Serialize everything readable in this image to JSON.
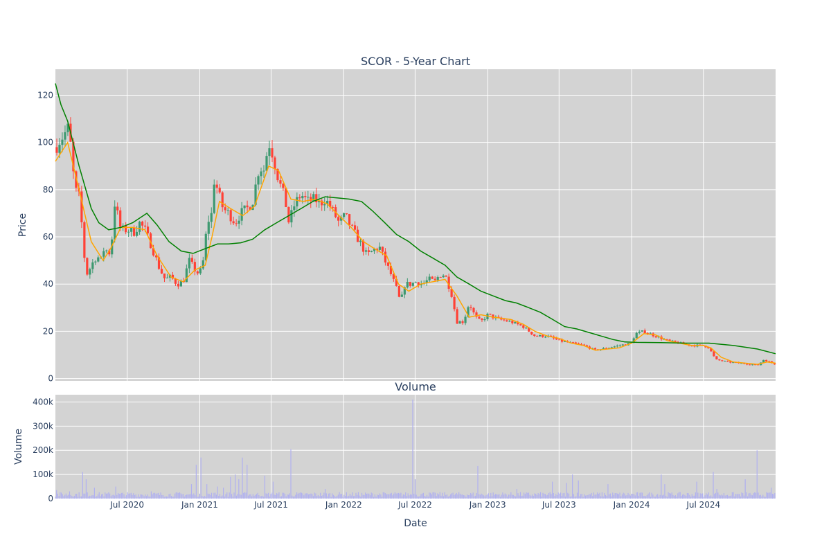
{
  "chart_data": [
    {
      "type": "candlestick",
      "title": "SCOR - 5-Year Chart",
      "xlabel": "",
      "ylabel": "Price",
      "ylim": [
        -1,
        131
      ],
      "yticks": [
        0,
        20,
        40,
        60,
        80,
        100,
        120
      ],
      "x_range": [
        "2020-01-01",
        "2024-12-31"
      ],
      "grid": true,
      "colors": {
        "increasing": "#3d9970",
        "decreasing": "#ff4136",
        "short_ma": "#ffa500",
        "long_ma": "#008000",
        "plot_bg": "#d3d3d3",
        "grid": "#ffffff"
      },
      "anchors": [
        [
          "2020-01-02",
          98
        ],
        [
          "2020-01-12",
          101
        ],
        [
          "2020-01-22",
          103
        ],
        [
          "2020-02-01",
          106
        ],
        [
          "2020-02-06",
          104
        ],
        [
          "2020-02-12",
          92
        ],
        [
          "2020-02-20",
          80
        ],
        [
          "2020-03-01",
          77
        ],
        [
          "2020-03-08",
          65
        ],
        [
          "2020-03-14",
          52
        ],
        [
          "2020-03-22",
          44
        ],
        [
          "2020-04-01",
          48
        ],
        [
          "2020-04-15",
          52
        ],
        [
          "2020-04-25",
          50
        ],
        [
          "2020-05-05",
          56
        ],
        [
          "2020-05-15",
          52
        ],
        [
          "2020-05-24",
          60
        ],
        [
          "2020-05-29",
          75
        ],
        [
          "2020-06-06",
          70
        ],
        [
          "2020-06-15",
          63
        ],
        [
          "2020-07-01",
          63
        ],
        [
          "2020-07-20",
          62
        ],
        [
          "2020-08-01",
          66
        ],
        [
          "2020-08-15",
          63
        ],
        [
          "2020-09-01",
          56
        ],
        [
          "2020-09-20",
          47
        ],
        [
          "2020-10-05",
          42
        ],
        [
          "2020-10-20",
          43
        ],
        [
          "2020-11-05",
          40
        ],
        [
          "2020-11-20",
          41
        ],
        [
          "2020-12-05",
          50
        ],
        [
          "2020-12-20",
          46
        ],
        [
          "2020-12-31",
          44
        ],
        [
          "2021-01-10",
          50
        ],
        [
          "2021-01-20",
          66
        ],
        [
          "2021-02-01",
          70
        ],
        [
          "2021-02-07",
          85
        ],
        [
          "2021-02-18",
          78
        ],
        [
          "2021-03-01",
          72
        ],
        [
          "2021-03-15",
          70
        ],
        [
          "2021-04-01",
          66
        ],
        [
          "2021-04-15",
          70
        ],
        [
          "2021-05-01",
          72
        ],
        [
          "2021-05-15",
          75
        ],
        [
          "2021-06-01",
          90
        ],
        [
          "2021-06-12",
          88
        ],
        [
          "2021-06-25",
          100
        ],
        [
          "2021-07-05",
          95
        ],
        [
          "2021-07-20",
          84
        ],
        [
          "2021-08-05",
          76
        ],
        [
          "2021-08-15",
          66
        ],
        [
          "2021-08-30",
          74
        ],
        [
          "2021-09-15",
          78
        ],
        [
          "2021-10-01",
          75
        ],
        [
          "2021-10-20",
          76
        ],
        [
          "2021-11-01",
          74
        ],
        [
          "2021-11-15",
          76
        ],
        [
          "2021-12-01",
          72
        ],
        [
          "2021-12-20",
          66
        ],
        [
          "2022-01-05",
          69
        ],
        [
          "2022-01-20",
          64
        ],
        [
          "2022-02-10",
          58
        ],
        [
          "2022-03-01",
          52
        ],
        [
          "2022-03-15",
          54
        ],
        [
          "2022-04-01",
          56
        ],
        [
          "2022-04-15",
          50
        ],
        [
          "2022-05-01",
          44
        ],
        [
          "2022-05-15",
          38
        ],
        [
          "2022-05-25",
          32
        ],
        [
          "2022-06-05",
          40
        ],
        [
          "2022-06-20",
          40
        ],
        [
          "2022-07-05",
          41
        ],
        [
          "2022-07-20",
          40
        ],
        [
          "2022-08-05",
          42
        ],
        [
          "2022-08-20",
          41
        ],
        [
          "2022-09-01",
          44
        ],
        [
          "2022-09-15",
          44
        ],
        [
          "2022-10-01",
          36
        ],
        [
          "2022-10-15",
          24
        ],
        [
          "2022-11-01",
          24
        ],
        [
          "2022-11-15",
          32
        ],
        [
          "2022-12-01",
          26
        ],
        [
          "2022-12-15",
          24
        ],
        [
          "2023-01-01",
          27
        ],
        [
          "2023-01-15",
          26
        ],
        [
          "2023-02-01",
          25
        ],
        [
          "2023-03-01",
          24
        ],
        [
          "2023-04-01",
          22
        ],
        [
          "2023-05-01",
          18
        ],
        [
          "2023-06-01",
          18
        ],
        [
          "2023-07-01",
          16
        ],
        [
          "2023-08-01",
          15
        ],
        [
          "2023-09-01",
          14
        ],
        [
          "2023-10-01",
          12
        ],
        [
          "2023-11-01",
          13
        ],
        [
          "2023-12-01",
          14
        ],
        [
          "2024-01-01",
          15
        ],
        [
          "2024-01-10",
          19
        ],
        [
          "2024-02-01",
          20
        ],
        [
          "2024-03-01",
          18
        ],
        [
          "2024-04-01",
          16
        ],
        [
          "2024-05-01",
          15
        ],
        [
          "2024-06-01",
          14
        ],
        [
          "2024-07-01",
          14
        ],
        [
          "2024-07-15",
          13
        ],
        [
          "2024-08-01",
          8
        ],
        [
          "2024-09-01",
          7
        ],
        [
          "2024-10-01",
          6.5
        ],
        [
          "2024-11-01",
          6
        ],
        [
          "2024-11-15",
          5.5
        ],
        [
          "2024-12-01",
          8
        ],
        [
          "2024-12-31",
          6
        ]
      ],
      "series": [
        {
          "name": "",
          "kind": "moving-average-short",
          "points": [
            [
              "2020-01-01",
              92
            ],
            [
              "2020-02-01",
              100
            ],
            [
              "2020-03-01",
              80
            ],
            [
              "2020-04-01",
              58
            ],
            [
              "2020-05-01",
              50
            ],
            [
              "2020-05-20",
              55
            ],
            [
              "2020-06-15",
              64
            ],
            [
              "2020-07-15",
              64
            ],
            [
              "2020-08-15",
              63
            ],
            [
              "2020-09-15",
              52
            ],
            [
              "2020-10-20",
              43
            ],
            [
              "2020-11-20",
              41
            ],
            [
              "2020-12-20",
              46
            ],
            [
              "2021-01-15",
              48
            ],
            [
              "2021-02-01",
              60
            ],
            [
              "2021-02-20",
              75
            ],
            [
              "2021-03-20",
              72
            ],
            [
              "2021-04-20",
              69
            ],
            [
              "2021-05-20",
              73
            ],
            [
              "2021-06-25",
              90
            ],
            [
              "2021-07-20",
              88
            ],
            [
              "2021-08-20",
              76
            ],
            [
              "2021-09-20",
              75
            ],
            [
              "2021-10-20",
              76
            ],
            [
              "2021-11-20",
              74
            ],
            [
              "2021-12-20",
              69
            ],
            [
              "2022-01-20",
              64
            ],
            [
              "2022-02-20",
              58
            ],
            [
              "2022-03-20",
              55
            ],
            [
              "2022-04-20",
              52
            ],
            [
              "2022-05-20",
              40
            ],
            [
              "2022-06-15",
              37
            ],
            [
              "2022-07-15",
              40
            ],
            [
              "2022-08-15",
              41
            ],
            [
              "2022-09-15",
              42
            ],
            [
              "2022-10-15",
              35
            ],
            [
              "2022-11-15",
              26
            ],
            [
              "2022-12-15",
              27
            ],
            [
              "2023-01-15",
              26
            ],
            [
              "2023-03-01",
              25
            ],
            [
              "2023-04-01",
              23
            ],
            [
              "2023-05-01",
              20
            ],
            [
              "2023-06-01",
              18
            ],
            [
              "2023-07-01",
              17
            ],
            [
              "2023-08-01",
              15
            ],
            [
              "2023-09-01",
              14
            ],
            [
              "2023-10-01",
              12
            ],
            [
              "2023-11-01",
              12.5
            ],
            [
              "2023-12-01",
              13
            ],
            [
              "2024-01-01",
              15
            ],
            [
              "2024-02-01",
              19
            ],
            [
              "2024-03-01",
              18.5
            ],
            [
              "2024-04-01",
              16
            ],
            [
              "2024-05-01",
              15
            ],
            [
              "2024-06-01",
              14
            ],
            [
              "2024-07-01",
              14
            ],
            [
              "2024-07-20",
              13
            ],
            [
              "2024-08-15",
              9
            ],
            [
              "2024-09-15",
              7
            ],
            [
              "2024-10-15",
              6.5
            ],
            [
              "2024-11-15",
              6
            ],
            [
              "2024-12-10",
              7
            ],
            [
              "2024-12-31",
              6.5
            ]
          ]
        },
        {
          "name": "",
          "kind": "moving-average-long",
          "points": [
            [
              "2020-01-01",
              125
            ],
            [
              "2020-01-15",
              116
            ],
            [
              "2020-02-01",
              109
            ],
            [
              "2020-03-01",
              90
            ],
            [
              "2020-04-01",
              72
            ],
            [
              "2020-04-20",
              66
            ],
            [
              "2020-05-15",
              63
            ],
            [
              "2020-06-15",
              64
            ],
            [
              "2020-07-15",
              66
            ],
            [
              "2020-08-20",
              70
            ],
            [
              "2020-09-15",
              65
            ],
            [
              "2020-10-15",
              58
            ],
            [
              "2020-11-15",
              54
            ],
            [
              "2020-12-15",
              53
            ],
            [
              "2021-01-15",
              55
            ],
            [
              "2021-02-15",
              57
            ],
            [
              "2021-03-15",
              57
            ],
            [
              "2021-04-15",
              57.5
            ],
            [
              "2021-05-15",
              59
            ],
            [
              "2021-06-15",
              63
            ],
            [
              "2021-07-15",
              66
            ],
            [
              "2021-08-15",
              69
            ],
            [
              "2021-09-15",
              72
            ],
            [
              "2021-10-15",
              75
            ],
            [
              "2021-11-15",
              77
            ],
            [
              "2021-12-15",
              76.5
            ],
            [
              "2022-01-15",
              76
            ],
            [
              "2022-02-15",
              75
            ],
            [
              "2022-03-15",
              71
            ],
            [
              "2022-04-15",
              66
            ],
            [
              "2022-05-15",
              61
            ],
            [
              "2022-06-15",
              58
            ],
            [
              "2022-07-15",
              54
            ],
            [
              "2022-08-15",
              51
            ],
            [
              "2022-09-15",
              48
            ],
            [
              "2022-10-15",
              43
            ],
            [
              "2022-11-15",
              40
            ],
            [
              "2022-12-15",
              37
            ],
            [
              "2023-01-15",
              35
            ],
            [
              "2023-02-15",
              33
            ],
            [
              "2023-03-15",
              32
            ],
            [
              "2023-04-15",
              30
            ],
            [
              "2023-05-15",
              28
            ],
            [
              "2023-06-15",
              25
            ],
            [
              "2023-07-15",
              22
            ],
            [
              "2023-08-15",
              21
            ],
            [
              "2023-09-15",
              19.5
            ],
            [
              "2023-10-15",
              18
            ],
            [
              "2023-11-15",
              16.5
            ],
            [
              "2023-12-15",
              15.5
            ],
            [
              "2024-01-15",
              15.3
            ],
            [
              "2024-03-15",
              15.2
            ],
            [
              "2024-05-15",
              15
            ],
            [
              "2024-07-15",
              15
            ],
            [
              "2024-09-15",
              14
            ],
            [
              "2024-11-15",
              12.5
            ],
            [
              "2024-12-31",
              10.5
            ]
          ]
        }
      ]
    },
    {
      "type": "bar",
      "title": "Volume",
      "xlabel": "Date",
      "ylabel": "Volume",
      "ylim": [
        0,
        430000
      ],
      "yticks": [
        0,
        100000,
        200000,
        300000,
        400000
      ],
      "ytick_labels": [
        "0",
        "100k",
        "200k",
        "300k",
        "400k"
      ],
      "x_range": [
        "2020-01-01",
        "2024-12-31"
      ],
      "xticks": [
        "2020-07-01",
        "2021-01-01",
        "2021-07-01",
        "2022-01-01",
        "2022-07-01",
        "2023-01-01",
        "2023-07-01",
        "2024-01-01",
        "2024-07-01"
      ],
      "xtick_labels": [
        "Jul 2020",
        "Jan 2021",
        "Jul 2021",
        "Jan 2022",
        "Jul 2022",
        "Jan 2023",
        "Jul 2023",
        "Jan 2024",
        "Jul 2024"
      ],
      "grid": true,
      "colors": {
        "bar": "#b0b0f0"
      },
      "baseline": 18000,
      "spikes": [
        [
          "2020-01-05",
          35000
        ],
        [
          "2020-02-05",
          30000
        ],
        [
          "2020-03-10",
          110000
        ],
        [
          "2020-03-20",
          80000
        ],
        [
          "2020-04-10",
          45000
        ],
        [
          "2020-06-01",
          50000
        ],
        [
          "2020-09-01",
          30000
        ],
        [
          "2020-12-10",
          60000
        ],
        [
          "2020-12-22",
          140000
        ],
        [
          "2021-01-05",
          170000
        ],
        [
          "2021-01-20",
          60000
        ],
        [
          "2021-02-15",
          50000
        ],
        [
          "2021-03-01",
          45000
        ],
        [
          "2021-03-20",
          90000
        ],
        [
          "2021-04-01",
          100000
        ],
        [
          "2021-04-10",
          80000
        ],
        [
          "2021-04-20",
          170000
        ],
        [
          "2021-05-01",
          140000
        ],
        [
          "2021-06-15",
          95000
        ],
        [
          "2021-07-05",
          70000
        ],
        [
          "2021-08-20",
          205000
        ],
        [
          "2021-11-15",
          40000
        ],
        [
          "2022-06-25",
          410000
        ],
        [
          "2022-06-30",
          80000
        ],
        [
          "2022-12-08",
          135000
        ],
        [
          "2023-03-15",
          40000
        ],
        [
          "2023-06-15",
          70000
        ],
        [
          "2023-07-20",
          65000
        ],
        [
          "2023-08-05",
          100000
        ],
        [
          "2023-08-20",
          75000
        ],
        [
          "2023-11-01",
          60000
        ],
        [
          "2024-03-15",
          100000
        ],
        [
          "2024-03-25",
          60000
        ],
        [
          "2024-06-15",
          70000
        ],
        [
          "2024-07-25",
          110000
        ],
        [
          "2024-08-05",
          40000
        ],
        [
          "2024-10-15",
          80000
        ],
        [
          "2024-11-15",
          200000
        ],
        [
          "2024-12-20",
          45000
        ]
      ]
    }
  ]
}
